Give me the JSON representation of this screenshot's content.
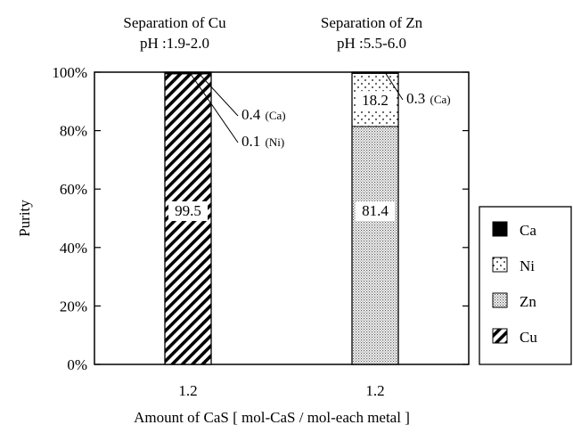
{
  "chart_data": {
    "type": "bar",
    "stacked": true,
    "ylabel": "Purity",
    "xlabel": "Amount of CaS [ mol-CaS / mol-each metal ]",
    "ylim": [
      0,
      100
    ],
    "yticks": [
      "0%",
      "20%",
      "40%",
      "60%",
      "80%",
      "100%"
    ],
    "grid": false,
    "legend_position": "right",
    "groups": [
      {
        "title_line1": "Separation of Cu",
        "title_line2": "pH :1.9-2.0",
        "category": "1.2",
        "segments": [
          {
            "metal": "Cu",
            "value": 99.5,
            "label": "99.5"
          },
          {
            "metal": "Ni",
            "value": 0.1,
            "label": "0.1",
            "label_suffix": "(Ni)"
          },
          {
            "metal": "Ca",
            "value": 0.4,
            "label": "0.4",
            "label_suffix": "(Ca)"
          }
        ]
      },
      {
        "title_line1": "Separation of Zn",
        "title_line2": "pH :5.5-6.0",
        "category": "1.2",
        "segments": [
          {
            "metal": "Zn",
            "value": 81.4,
            "label": "81.4"
          },
          {
            "metal": "Ni",
            "value": 18.2,
            "label": "18.2"
          },
          {
            "metal": "Ca",
            "value": 0.3,
            "label": "0.3",
            "label_suffix": "(Ca)"
          }
        ]
      }
    ],
    "legend": [
      "Ca",
      "Ni",
      "Zn",
      "Cu"
    ]
  },
  "colors": {
    "Ca": "#000000",
    "Ni": "#ffffff",
    "Zn": "#d0d0d0",
    "Cu": "#ffffff"
  }
}
